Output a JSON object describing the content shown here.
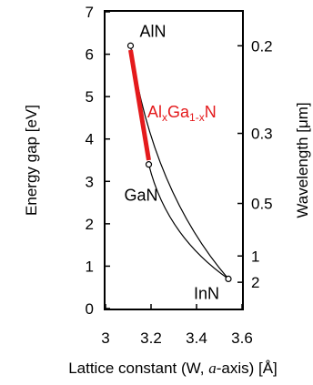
{
  "chart_data": {
    "type": "line",
    "xlabel": "Lattice constant (W, a-axis) [Å]",
    "xlabel_parts": {
      "before": "Lattice constant (W, ",
      "italic": "a",
      "after": "-axis) [Å]"
    },
    "ylabel": "Energy gap [eV]",
    "y2label": "Wavelength [μm]",
    "xlim": [
      3.0,
      3.6
    ],
    "ylim": [
      0,
      7
    ],
    "x_ticks": [
      "3",
      "3.2",
      "3.4",
      "3.6"
    ],
    "x_tick_values": [
      3.0,
      3.2,
      3.4,
      3.6
    ],
    "y_ticks": [
      "0",
      "1",
      "2",
      "3",
      "4",
      "5",
      "6",
      "7"
    ],
    "y_tick_values": [
      0,
      1,
      2,
      3,
      4,
      5,
      6,
      7
    ],
    "y2_ticks": [
      "0.2",
      "0.3",
      "0.5",
      "1",
      "2"
    ],
    "y2_tick_values": [
      0.2,
      0.3,
      0.5,
      1,
      2
    ],
    "grid": false,
    "points": [
      {
        "name": "AlN",
        "x": 3.11,
        "y": 6.2
      },
      {
        "name": "GaN",
        "x": 3.19,
        "y": 3.4
      },
      {
        "name": "InN",
        "x": 3.54,
        "y": 0.7
      }
    ],
    "curves": [
      {
        "from": "AlN",
        "to": "InN",
        "color": "#000000"
      },
      {
        "from": "GaN",
        "to": "InN",
        "color": "#000000"
      }
    ],
    "highlight": {
      "label": {
        "base1": "Al",
        "sub1": "x",
        "base2": "Ga",
        "sub2": "1-x",
        "base3": "N"
      },
      "color": "#e41a1c",
      "from": {
        "x": 3.11,
        "y": 6.1
      },
      "to": {
        "x": 3.19,
        "y": 3.5
      }
    }
  }
}
